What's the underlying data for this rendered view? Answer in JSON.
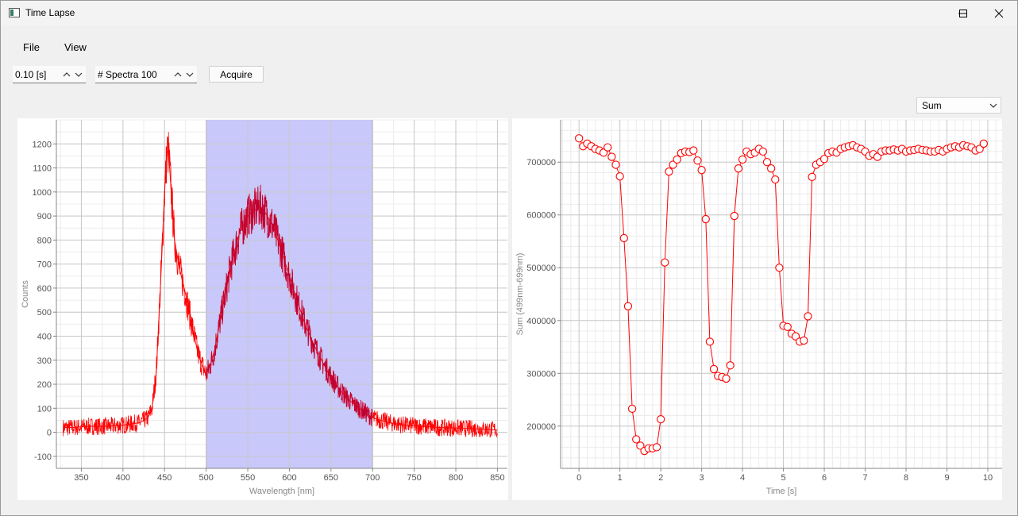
{
  "window": {
    "title": "Time Lapse",
    "icon": "app-window-icon"
  },
  "menu": {
    "items": [
      {
        "label": "File"
      },
      {
        "label": "View"
      }
    ]
  },
  "toolbar": {
    "exposure_value": "0.10 [s]",
    "spectra_value": "# Spectra 100",
    "acquire_label": "Acquire"
  },
  "mode_select": {
    "value": "Sum"
  },
  "colors": {
    "series": "#ff0000",
    "highlight": "#c8c8fa",
    "dark_series": "#c00030"
  },
  "chart_data": [
    {
      "type": "line",
      "title": "",
      "xlabel": "Wavelength [nm]",
      "ylabel": "Counts",
      "xlim": [
        320,
        862
      ],
      "ylim": [
        -150,
        1300
      ],
      "x_ticks": [
        350,
        400,
        450,
        500,
        550,
        600,
        650,
        700,
        750,
        800,
        850
      ],
      "y_ticks": [
        -100,
        0,
        100,
        200,
        300,
        400,
        500,
        600,
        700,
        800,
        900,
        1000,
        1100,
        1200
      ],
      "grid": true,
      "selected_range": [
        500,
        700
      ],
      "series": [
        {
          "x": [
            328,
            340,
            360,
            380,
            400,
            420,
            430,
            435,
            440,
            445,
            450,
            453,
            455,
            458,
            462,
            468,
            475,
            482,
            490,
            495,
            500,
            505,
            510,
            520,
            530,
            540,
            550,
            560,
            565,
            570,
            580,
            590,
            600,
            610,
            620,
            630,
            640,
            650,
            660,
            670,
            680,
            690,
            700,
            720,
            740,
            760,
            780,
            800,
            820,
            840,
            850
          ],
          "y": [
            20,
            20,
            25,
            25,
            30,
            40,
            60,
            100,
            250,
            600,
            1000,
            1170,
            1160,
            1000,
            800,
            680,
            580,
            460,
            330,
            280,
            240,
            280,
            340,
            520,
            700,
            830,
            900,
            930,
            940,
            920,
            860,
            760,
            650,
            540,
            440,
            360,
            290,
            230,
            180,
            140,
            110,
            85,
            60,
            40,
            30,
            25,
            20,
            18,
            15,
            12,
            10
          ]
        }
      ]
    },
    {
      "type": "line",
      "title": "",
      "xlabel": "Time [s]",
      "ylabel": "Sum (499nm-699nm)",
      "xlim": [
        -0.45,
        10.35
      ],
      "ylim": [
        120000,
        780000
      ],
      "x_ticks": [
        0,
        1,
        2,
        3,
        4,
        5,
        6,
        7,
        8,
        9,
        10
      ],
      "y_ticks": [
        200000,
        300000,
        400000,
        500000,
        600000,
        700000
      ],
      "grid": true,
      "series": [
        {
          "x": [
            0,
            0.1,
            0.2,
            0.3,
            0.4,
            0.5,
            0.6,
            0.7,
            0.8,
            0.9,
            1.0,
            1.1,
            1.2,
            1.3,
            1.4,
            1.5,
            1.6,
            1.7,
            1.8,
            1.9,
            2.0,
            2.1,
            2.2,
            2.3,
            2.4,
            2.5,
            2.6,
            2.7,
            2.8,
            2.9,
            3.0,
            3.1,
            3.2,
            3.3,
            3.4,
            3.5,
            3.6,
            3.7,
            3.8,
            3.9,
            4.0,
            4.1,
            4.2,
            4.3,
            4.4,
            4.5,
            4.6,
            4.7,
            4.8,
            4.9,
            5.0,
            5.1,
            5.2,
            5.3,
            5.4,
            5.5,
            5.6,
            5.7,
            5.8,
            5.9,
            6.0,
            6.1,
            6.2,
            6.3,
            6.4,
            6.5,
            6.6,
            6.7,
            6.8,
            6.9,
            7.0,
            7.1,
            7.2,
            7.3,
            7.4,
            7.5,
            7.6,
            7.7,
            7.8,
            7.9,
            8.0,
            8.1,
            8.2,
            8.3,
            8.4,
            8.5,
            8.6,
            8.7,
            8.8,
            8.9,
            9.0,
            9.1,
            9.2,
            9.3,
            9.4,
            9.5,
            9.6,
            9.7,
            9.8,
            9.9
          ],
          "y": [
            745000,
            730000,
            735000,
            730000,
            725000,
            722000,
            718000,
            728000,
            710000,
            695000,
            673000,
            556000,
            427000,
            233000,
            175000,
            163000,
            153000,
            158000,
            158000,
            160000,
            213000,
            510000,
            682000,
            695000,
            705000,
            717000,
            720000,
            719000,
            722000,
            703000,
            685000,
            592000,
            360000,
            308000,
            295000,
            293000,
            290000,
            315000,
            598000,
            688000,
            705000,
            720000,
            715000,
            718000,
            725000,
            720000,
            700000,
            688000,
            667000,
            500000,
            390000,
            388000,
            375000,
            370000,
            360000,
            362000,
            408000,
            672000,
            695000,
            700000,
            706000,
            717000,
            720000,
            718000,
            725000,
            728000,
            730000,
            732000,
            728000,
            725000,
            720000,
            712000,
            715000,
            710000,
            720000,
            722000,
            722000,
            724000,
            722000,
            725000,
            720000,
            722000,
            723000,
            725000,
            723000,
            722000,
            720000,
            720000,
            723000,
            720000,
            725000,
            728000,
            730000,
            728000,
            732000,
            730000,
            728000,
            722000,
            725000,
            735000
          ]
        }
      ]
    }
  ]
}
